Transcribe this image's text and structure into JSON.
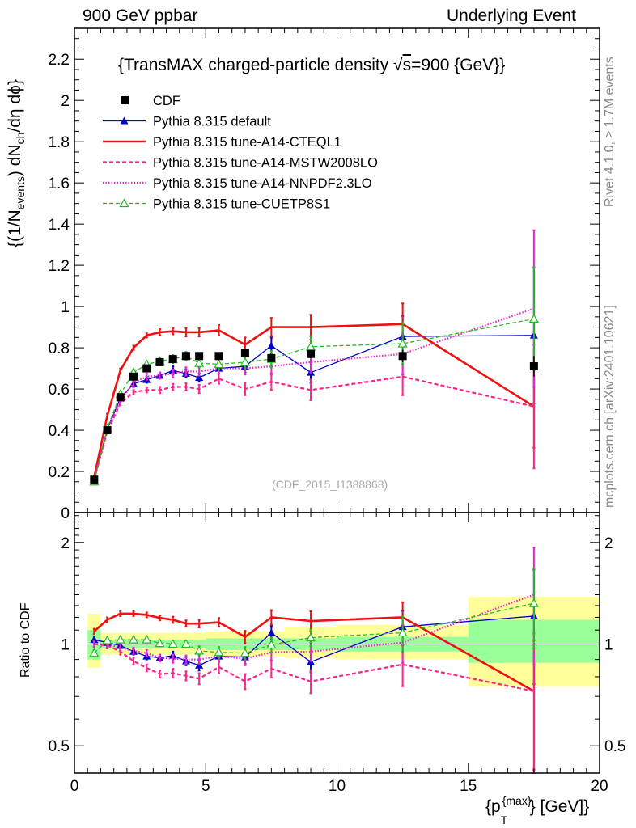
{
  "header": {
    "left": "900 GeV ppbar",
    "right": "Underlying Event"
  },
  "side_text": {
    "top": "Rivet 4.1.0, ≥ 1.7M events",
    "bottom": "mcplots.cern.ch [arXiv:2401.10621]"
  },
  "colors": {
    "data": "#000000",
    "default": "#0000cc",
    "cteql1": "#ee1111",
    "mstw": "#ff2288",
    "nnpdf": "#ee22cc",
    "cuetp": "#22bb22",
    "band_inner": "#99ff99",
    "band_outer": "#ffff99"
  },
  "chart_data": [
    {
      "type": "line",
      "panel": "main",
      "title": "{TransMAX charged-particle density √s=900 {GeV}}",
      "title_parts": {
        "main": "{TransMAX charged-particle density ",
        "sqrt": "√",
        "s": "s",
        "rest": "=900 {GeV}}"
      },
      "ylabel": "{(1/N_events) dN_ch/dη dϕ}",
      "ylabel_parts": {
        "p1": "{(1/N",
        "sub1": "events",
        "p2": ") dN",
        "sub2": "ch",
        "p3": "/dη dϕ}"
      },
      "xlabel": "{p_T^{max}} [GeV]}",
      "xlabel_parts": {
        "p1": "{p",
        "sub": "T",
        "sup": "{max}",
        "p2": "} [GeV]}"
      },
      "annotation": "(CDF_2015_I1388868)",
      "xlim": [
        0,
        20
      ],
      "ylim": [
        0,
        2.35
      ],
      "yticks": [
        0,
        0.2,
        0.4,
        0.6,
        0.8,
        1,
        1.2,
        1.4,
        1.6,
        1.8,
        2,
        2.2
      ],
      "ytick_labels": [
        "0",
        "0.2",
        "0.4",
        "0.6",
        "0.8",
        "1",
        "1.2",
        "1.4",
        "1.6",
        "1.8",
        "2",
        "2.2"
      ],
      "legend_position": "top-left",
      "bin_edges": [
        0.5,
        1.0,
        1.5,
        2.0,
        2.5,
        3.0,
        3.5,
        4.0,
        4.5,
        5.0,
        6.0,
        7.0,
        8.0,
        10.0,
        15.0,
        20.0
      ],
      "x": [
        0.75,
        1.25,
        1.75,
        2.25,
        2.75,
        3.25,
        3.75,
        4.25,
        4.75,
        5.5,
        6.5,
        7.5,
        9.0,
        12.5,
        17.5
      ],
      "series": [
        {
          "name": "CDF",
          "key": "data",
          "style": "marker-square",
          "values": [
            0.16,
            0.4,
            0.56,
            0.66,
            0.7,
            0.73,
            0.745,
            0.76,
            0.76,
            0.76,
            0.775,
            0.75,
            0.77,
            0.76,
            0.71
          ],
          "errors": [
            0.01,
            0.01,
            0.01,
            0.01,
            0.01,
            0.01,
            0.01,
            0.01,
            0.01,
            0.01,
            0.015,
            0.015,
            0.02,
            0.03,
            0.05
          ]
        },
        {
          "name": "Pythia 8.315 default",
          "key": "default",
          "style": "solid-triangle",
          "values": [
            0.165,
            0.405,
            0.555,
            0.625,
            0.645,
            0.665,
            0.69,
            0.675,
            0.655,
            0.7,
            0.71,
            0.81,
            0.68,
            0.855,
            0.86
          ],
          "errors": [
            0.01,
            0.01,
            0.01,
            0.015,
            0.015,
            0.015,
            0.02,
            0.02,
            0.02,
            0.025,
            0.03,
            0.04,
            0.05,
            0.1,
            0.33
          ]
        },
        {
          "name": "Pythia 8.315 tune-A14-CTEQL1",
          "key": "cteql1",
          "style": "solid-thick",
          "values": [
            0.17,
            0.47,
            0.69,
            0.8,
            0.86,
            0.875,
            0.88,
            0.875,
            0.875,
            0.885,
            0.815,
            0.9,
            0.9,
            0.915,
            0.515
          ],
          "errors": [
            0.01,
            0.01,
            0.01,
            0.01,
            0.01,
            0.015,
            0.015,
            0.02,
            0.02,
            0.025,
            0.035,
            0.045,
            0.06,
            0.1,
            0.2
          ]
        },
        {
          "name": "Pythia 8.315 tune-A14-MSTW2008LO",
          "key": "mstw",
          "style": "dashed",
          "values": [
            0.16,
            0.395,
            0.53,
            0.585,
            0.595,
            0.595,
            0.61,
            0.61,
            0.6,
            0.65,
            0.6,
            0.635,
            0.595,
            0.66,
            0.515
          ],
          "errors": [
            0.01,
            0.01,
            0.01,
            0.01,
            0.012,
            0.015,
            0.015,
            0.017,
            0.02,
            0.025,
            0.03,
            0.04,
            0.05,
            0.09,
            0.3
          ]
        },
        {
          "name": "Pythia 8.315 tune-A14-NNPDF2.3LO",
          "key": "nnpdf",
          "style": "dotted",
          "values": [
            0.16,
            0.4,
            0.545,
            0.63,
            0.66,
            0.665,
            0.675,
            0.685,
            0.685,
            0.7,
            0.7,
            0.71,
            0.73,
            0.77,
            0.99
          ],
          "errors": [
            0.01,
            0.01,
            0.01,
            0.015,
            0.015,
            0.015,
            0.02,
            0.02,
            0.02,
            0.025,
            0.03,
            0.04,
            0.05,
            0.1,
            0.38
          ]
        },
        {
          "name": "Pythia 8.315 tune-CUETP8S1",
          "key": "cuetp",
          "style": "dashed-open-triangle",
          "values": [
            0.15,
            0.41,
            0.575,
            0.68,
            0.72,
            0.735,
            0.745,
            0.76,
            0.725,
            0.72,
            0.73,
            0.745,
            0.805,
            0.82,
            0.94
          ],
          "errors": [
            0.01,
            0.01,
            0.01,
            0.015,
            0.015,
            0.015,
            0.02,
            0.02,
            0.02,
            0.025,
            0.03,
            0.04,
            0.05,
            0.1,
            0.25
          ]
        }
      ]
    },
    {
      "type": "line",
      "panel": "ratio",
      "ylabel": "Ratio to CDF",
      "xlim": [
        0,
        20
      ],
      "ylim": [
        0.415,
        2.45
      ],
      "yscale": "log",
      "yticks": [
        0.5,
        1,
        2
      ],
      "ytick_labels": [
        "0.5",
        "1",
        "2"
      ],
      "xticks": [
        0,
        5,
        10,
        15,
        20
      ],
      "xtick_labels": [
        "0",
        "5",
        "10",
        "15",
        "20"
      ],
      "data_band": {
        "inner": [
          [
            0.9,
            1.1
          ],
          [
            0.97,
            1.03
          ],
          [
            0.97,
            1.03
          ],
          [
            0.97,
            1.03
          ],
          [
            0.97,
            1.03
          ],
          [
            0.97,
            1.03
          ],
          [
            0.97,
            1.03
          ],
          [
            0.97,
            1.03
          ],
          [
            0.97,
            1.03
          ],
          [
            0.96,
            1.04
          ],
          [
            0.96,
            1.04
          ],
          [
            0.96,
            1.04
          ],
          [
            0.96,
            1.04
          ],
          [
            0.95,
            1.05
          ],
          [
            0.88,
            1.18
          ]
        ],
        "outer": [
          [
            0.85,
            1.23
          ],
          [
            0.93,
            1.08
          ],
          [
            0.93,
            1.08
          ],
          [
            0.93,
            1.08
          ],
          [
            0.93,
            1.08
          ],
          [
            0.93,
            1.08
          ],
          [
            0.93,
            1.08
          ],
          [
            0.93,
            1.08
          ],
          [
            0.93,
            1.08
          ],
          [
            0.92,
            1.09
          ],
          [
            0.92,
            1.09
          ],
          [
            0.92,
            1.09
          ],
          [
            0.91,
            1.12
          ],
          [
            0.9,
            1.14
          ],
          [
            0.75,
            1.38
          ]
        ]
      },
      "series": [
        {
          "key": "default",
          "values": [
            1.03,
            1.01,
            0.99,
            0.95,
            0.92,
            0.91,
            0.925,
            0.89,
            0.865,
            0.92,
            0.915,
            1.08,
            0.885,
            1.125,
            1.21
          ],
          "errors": [
            0.02,
            0.02,
            0.02,
            0.02,
            0.02,
            0.02,
            0.025,
            0.025,
            0.03,
            0.035,
            0.04,
            0.05,
            0.06,
            0.13,
            0.45
          ]
        },
        {
          "key": "cteql1",
          "values": [
            1.09,
            1.18,
            1.23,
            1.23,
            1.22,
            1.195,
            1.18,
            1.15,
            1.15,
            1.16,
            1.05,
            1.2,
            1.17,
            1.2,
            0.725
          ],
          "errors": [
            0.02,
            0.02,
            0.02,
            0.02,
            0.02,
            0.02,
            0.025,
            0.025,
            0.03,
            0.035,
            0.045,
            0.06,
            0.08,
            0.13,
            0.3
          ]
        },
        {
          "key": "mstw",
          "values": [
            1.0,
            0.99,
            0.95,
            0.89,
            0.85,
            0.815,
            0.82,
            0.805,
            0.79,
            0.855,
            0.775,
            0.845,
            0.775,
            0.87,
            0.725
          ],
          "errors": [
            0.02,
            0.02,
            0.02,
            0.02,
            0.02,
            0.02,
            0.025,
            0.025,
            0.03,
            0.035,
            0.04,
            0.05,
            0.06,
            0.12,
            0.35
          ]
        },
        {
          "key": "nnpdf",
          "values": [
            1.0,
            1.0,
            0.975,
            0.955,
            0.94,
            0.91,
            0.905,
            0.9,
            0.9,
            0.92,
            0.905,
            0.945,
            0.95,
            1.01,
            1.4
          ],
          "errors": [
            0.02,
            0.02,
            0.02,
            0.02,
            0.02,
            0.02,
            0.025,
            0.025,
            0.03,
            0.035,
            0.04,
            0.05,
            0.06,
            0.13,
            0.53
          ]
        },
        {
          "key": "cuetp",
          "values": [
            0.94,
            1.025,
            1.03,
            1.03,
            1.03,
            1.005,
            1.0,
            1.0,
            0.955,
            0.945,
            0.94,
            0.995,
            1.045,
            1.08,
            1.32
          ],
          "errors": [
            0.02,
            0.02,
            0.02,
            0.02,
            0.02,
            0.02,
            0.025,
            0.025,
            0.03,
            0.035,
            0.04,
            0.05,
            0.06,
            0.13,
            0.35
          ]
        }
      ]
    }
  ]
}
